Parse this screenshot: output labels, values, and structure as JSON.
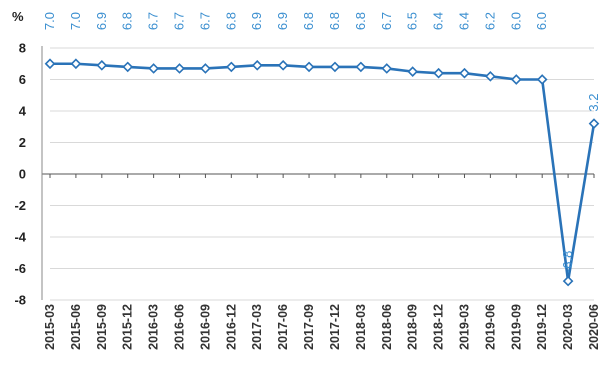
{
  "chart_data": {
    "type": "line",
    "unit_label": "%",
    "categories": [
      "2015-03",
      "2015-06",
      "2015-09",
      "2015-12",
      "2016-03",
      "2016-06",
      "2016-09",
      "2016-12",
      "2017-03",
      "2017-06",
      "2017-09",
      "2017-12",
      "2018-03",
      "2018-06",
      "2018-09",
      "2018-12",
      "2019-03",
      "2019-06",
      "2019-09",
      "2019-12",
      "2020-03",
      "2020-06"
    ],
    "series": [
      {
        "values": [
          7.0,
          7.0,
          6.9,
          6.8,
          6.7,
          6.7,
          6.7,
          6.8,
          6.9,
          6.9,
          6.8,
          6.8,
          6.8,
          6.7,
          6.5,
          6.4,
          6.4,
          6.2,
          6.0,
          6.0,
          -6.8,
          3.2
        ],
        "labels": [
          "7.0",
          "7.0",
          "6.9",
          "6.8",
          "6.7",
          "6.7",
          "6.7",
          "6.8",
          "6.9",
          "6.9",
          "6.8",
          "6.8",
          "6.8",
          "6.7",
          "6.5",
          "6.4",
          "6.4",
          "6.2",
          "6.0",
          "6.0",
          "-6.8",
          "3.2"
        ]
      }
    ],
    "ylim": [
      -8,
      8
    ],
    "yticks": [
      -8,
      -6,
      -4,
      -2,
      0,
      2,
      4,
      6,
      8
    ],
    "ytick_labels": [
      "-8",
      "-6",
      "-4",
      "-2",
      "0",
      "2",
      "4",
      "6",
      "8"
    ],
    "grid": true,
    "colors": {
      "line": "#2a73b8",
      "marker_fill": "#ffffff",
      "label": "#3b8fd0",
      "grid": "#d9d9d9"
    }
  }
}
